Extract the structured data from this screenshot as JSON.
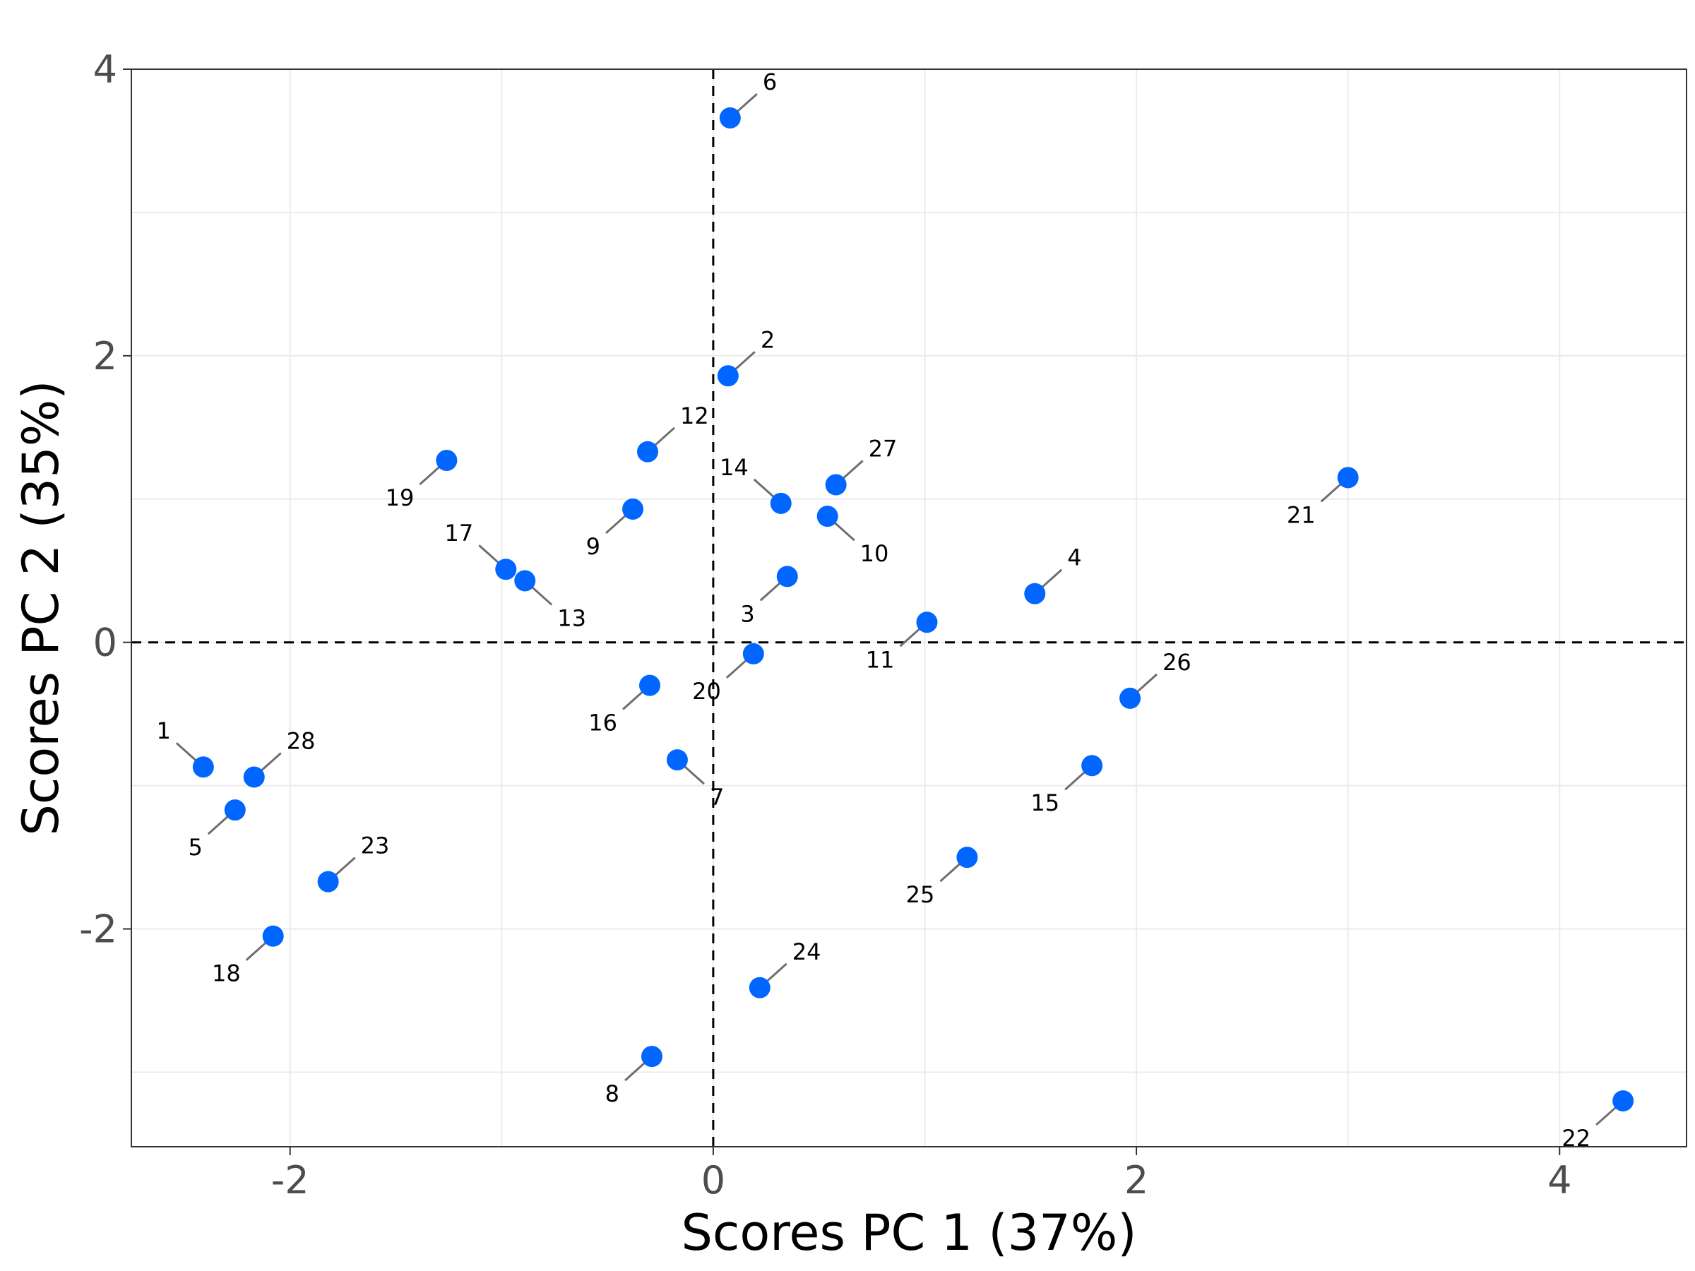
{
  "chart_data": {
    "type": "scatter",
    "xlabel": "Scores PC 1 (37%)",
    "ylabel": "Scores PC 2 (35%)",
    "xlim": [
      -2.75,
      4.6
    ],
    "ylim": [
      -3.52,
      4.0
    ],
    "x_ticks": [
      -2,
      0,
      2,
      4
    ],
    "y_ticks": [
      -2,
      0,
      2,
      4
    ],
    "x_tick_labels": [
      "-2",
      "0",
      "2",
      "4"
    ],
    "y_tick_labels": [
      "-2",
      "0",
      "2",
      "4"
    ],
    "grid": true,
    "reference_lines": {
      "x": 0,
      "y": 0,
      "style": "dashed"
    },
    "point_color": "#0066ff",
    "points": [
      {
        "label": "1",
        "x": -2.41,
        "y": -0.87,
        "label_side": "upper-left"
      },
      {
        "label": "2",
        "x": 0.07,
        "y": 1.86,
        "label_side": "upper-right"
      },
      {
        "label": "3",
        "x": 0.35,
        "y": 0.46,
        "label_side": "lower-left"
      },
      {
        "label": "4",
        "x": 1.52,
        "y": 0.34,
        "label_side": "upper-right"
      },
      {
        "label": "5",
        "x": -2.26,
        "y": -1.17,
        "label_side": "lower-left"
      },
      {
        "label": "6",
        "x": 0.08,
        "y": 3.66,
        "label_side": "upper-right"
      },
      {
        "label": "7",
        "x": -0.17,
        "y": -0.82,
        "label_side": "lower-right"
      },
      {
        "label": "8",
        "x": -0.29,
        "y": -2.89,
        "label_side": "lower-left"
      },
      {
        "label": "9",
        "x": -0.38,
        "y": 0.93,
        "label_side": "lower-left"
      },
      {
        "label": "10",
        "x": 0.54,
        "y": 0.88,
        "label_side": "lower-right"
      },
      {
        "label": "11",
        "x": 1.01,
        "y": 0.14,
        "label_side": "lower-left"
      },
      {
        "label": "12",
        "x": -0.31,
        "y": 1.33,
        "label_side": "upper-right"
      },
      {
        "label": "13",
        "x": -0.89,
        "y": 0.43,
        "label_side": "lower-right"
      },
      {
        "label": "14",
        "x": 0.32,
        "y": 0.97,
        "label_side": "upper-left"
      },
      {
        "label": "15",
        "x": 1.79,
        "y": -0.86,
        "label_side": "lower-left"
      },
      {
        "label": "16",
        "x": -0.3,
        "y": -0.3,
        "label_side": "lower-left"
      },
      {
        "label": "17",
        "x": -0.98,
        "y": 0.51,
        "label_side": "upper-left"
      },
      {
        "label": "18",
        "x": -2.08,
        "y": -2.05,
        "label_side": "lower-left"
      },
      {
        "label": "19",
        "x": -1.26,
        "y": 1.27,
        "label_side": "lower-left"
      },
      {
        "label": "20",
        "x": 0.19,
        "y": -0.08,
        "label_side": "lower-left"
      },
      {
        "label": "21",
        "x": 3.0,
        "y": 1.15,
        "label_side": "lower-left"
      },
      {
        "label": "22",
        "x": 4.3,
        "y": -3.2,
        "label_side": "lower-left"
      },
      {
        "label": "23",
        "x": -1.82,
        "y": -1.67,
        "label_side": "upper-right"
      },
      {
        "label": "24",
        "x": 0.22,
        "y": -2.41,
        "label_side": "upper-right"
      },
      {
        "label": "25",
        "x": 1.2,
        "y": -1.5,
        "label_side": "lower-left"
      },
      {
        "label": "26",
        "x": 1.97,
        "y": -0.39,
        "label_side": "upper-right"
      },
      {
        "label": "27",
        "x": 0.58,
        "y": 1.1,
        "label_side": "upper-right"
      },
      {
        "label": "28",
        "x": -2.17,
        "y": -0.94,
        "label_side": "upper-right"
      }
    ]
  }
}
